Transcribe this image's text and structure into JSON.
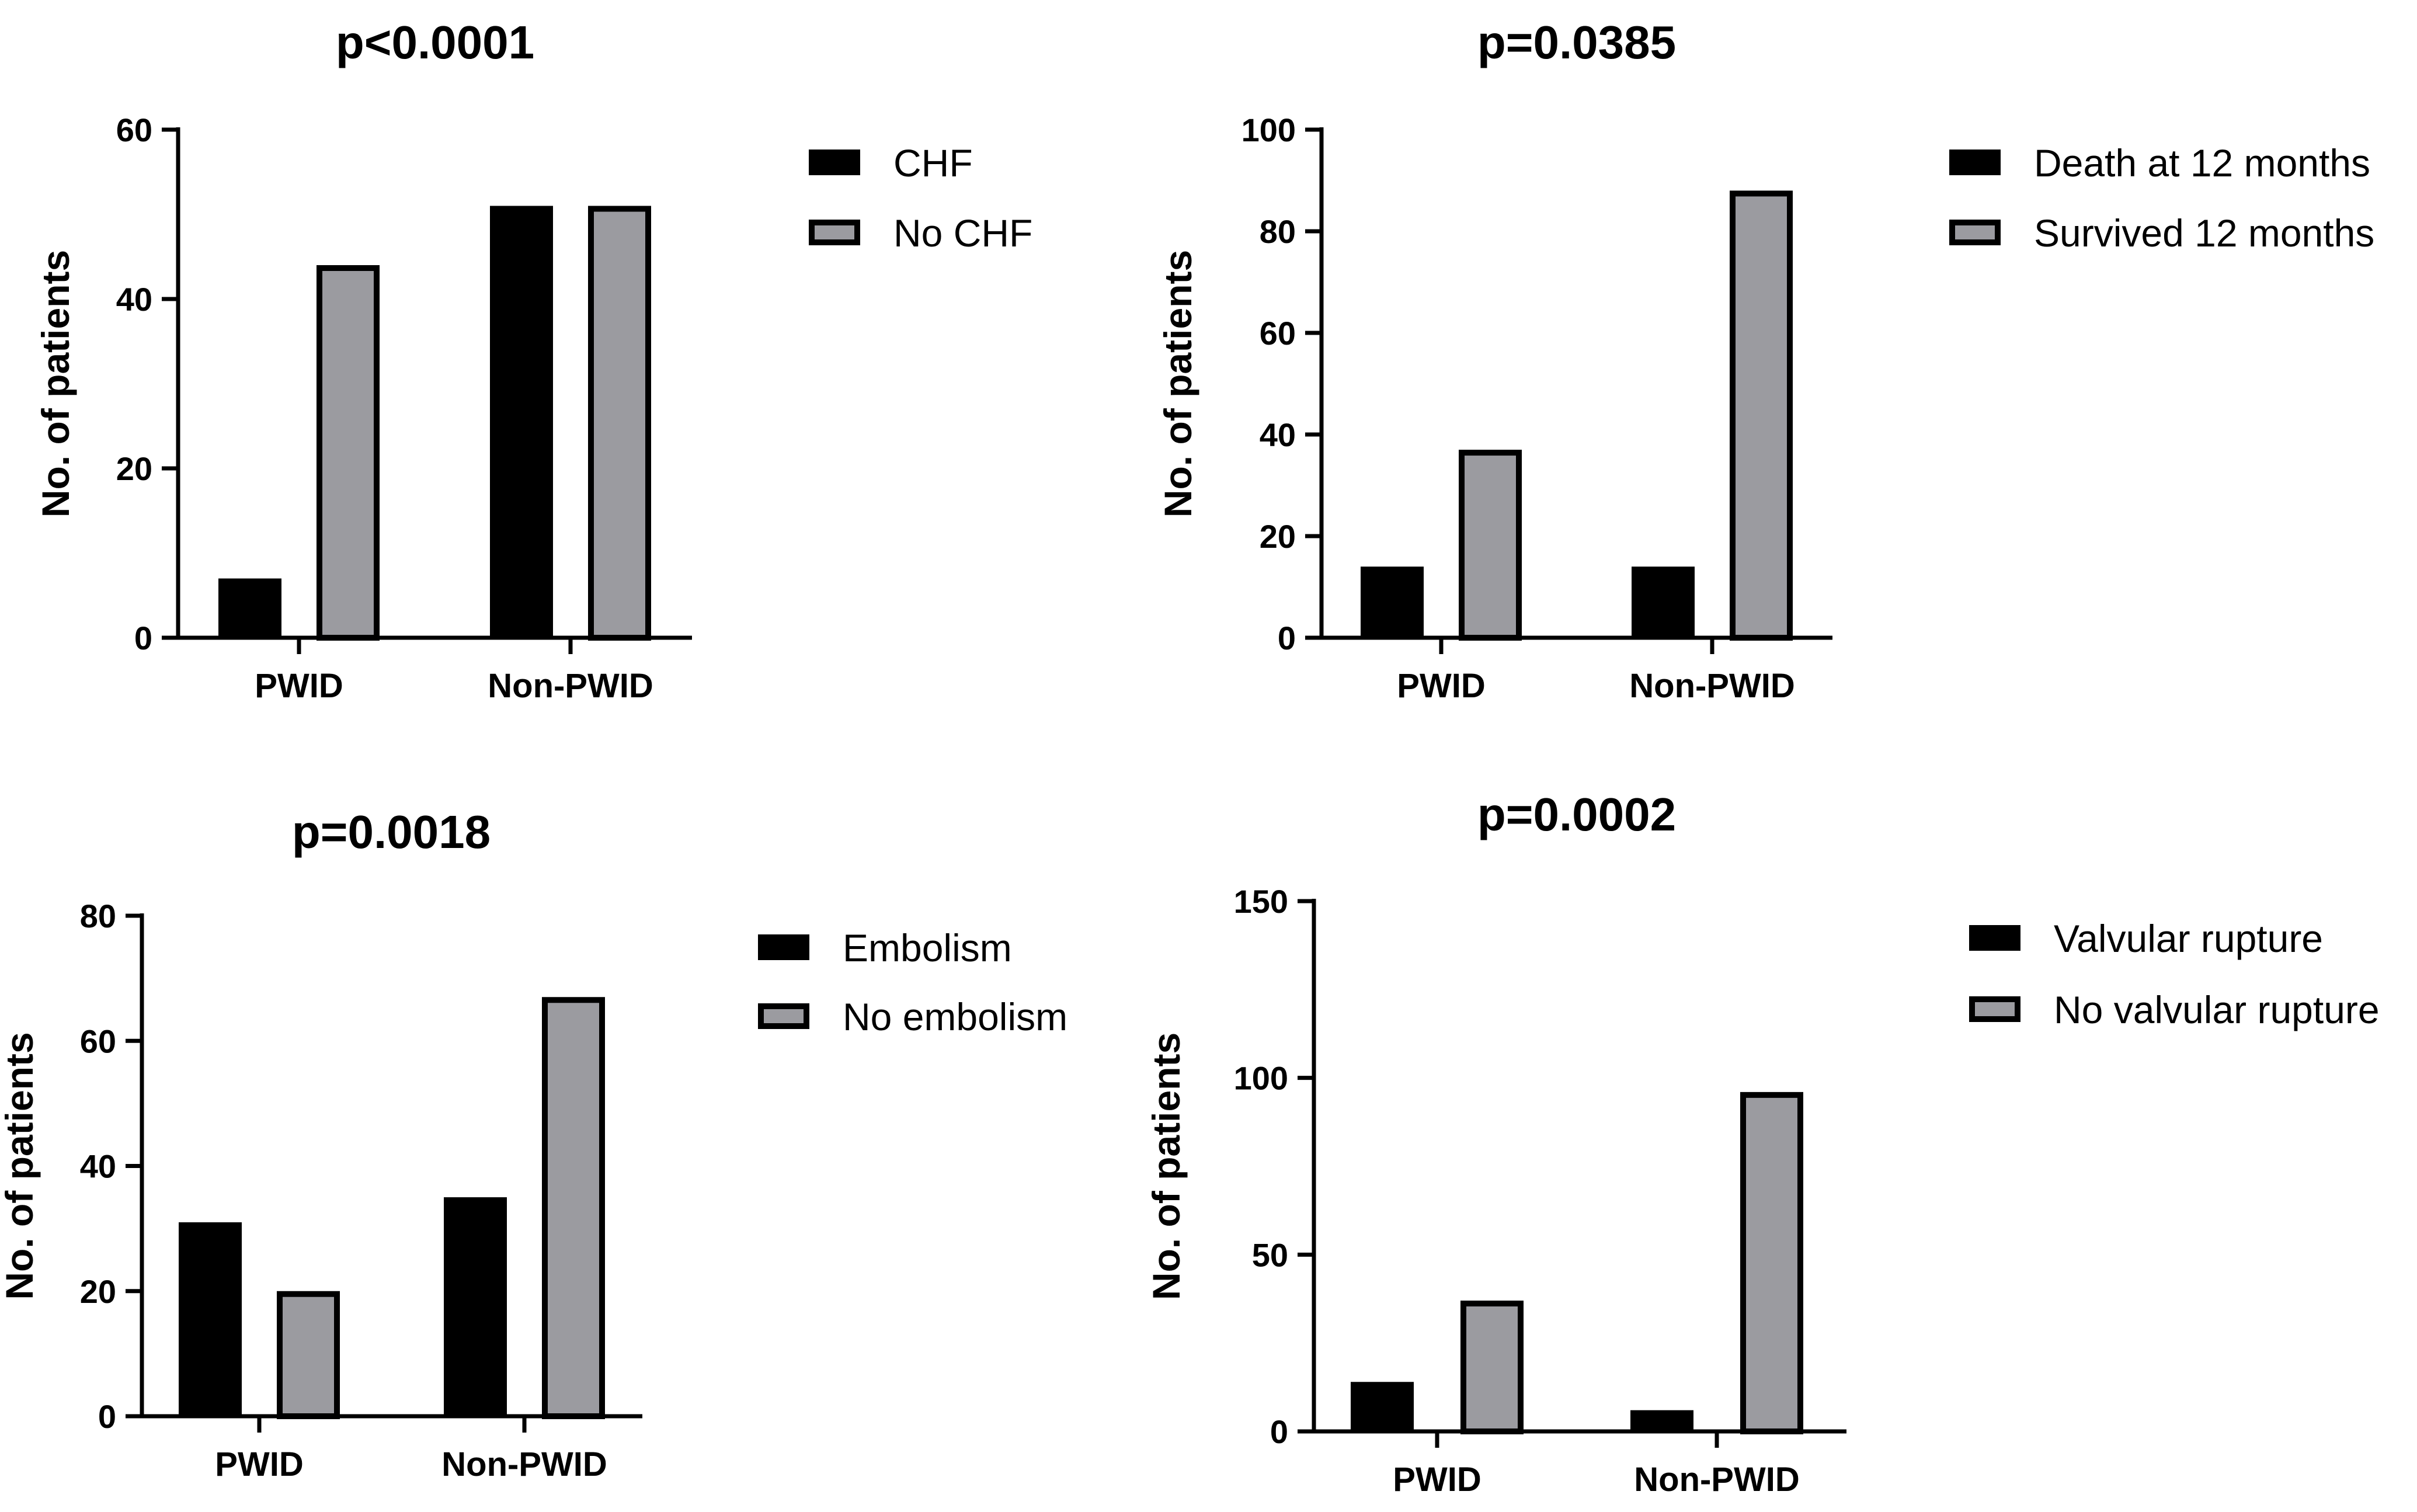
{
  "colors": {
    "series_a": "#000000",
    "series_b": "#9b9ba0",
    "outline": "#000000"
  },
  "chart_data": [
    {
      "type": "bar",
      "title": "p<0.0001",
      "ylabel": "No. of patients",
      "xlabel": "",
      "categories": [
        "PWID",
        "Non-PWID"
      ],
      "ylim": [
        0,
        60
      ],
      "yticks": [
        "0",
        "20",
        "40",
        "60"
      ],
      "series": [
        {
          "name": "CHF",
          "values": [
            7,
            51
          ]
        },
        {
          "name": "No CHF",
          "values": [
            44,
            51
          ]
        }
      ],
      "legend": "right"
    },
    {
      "type": "bar",
      "title": "p=0.0385",
      "ylabel": "No. of patients",
      "xlabel": "",
      "categories": [
        "PWID",
        "Non-PWID"
      ],
      "ylim": [
        0,
        100
      ],
      "yticks": [
        "0",
        "20",
        "40",
        "60",
        "80",
        "100"
      ],
      "series": [
        {
          "name": "Death at 12 months",
          "values": [
            14,
            14
          ]
        },
        {
          "name": "Survived 12 months",
          "values": [
            37,
            88
          ]
        }
      ],
      "legend": "right"
    },
    {
      "type": "bar",
      "title": "p=0.0018",
      "ylabel": "No. of patients",
      "xlabel": "",
      "categories": [
        "PWID",
        "Non-PWID"
      ],
      "ylim": [
        0,
        80
      ],
      "yticks": [
        "0",
        "20",
        "40",
        "60",
        "80"
      ],
      "series": [
        {
          "name": "Embolism",
          "values": [
            31,
            35
          ]
        },
        {
          "name": "No embolism",
          "values": [
            20,
            67
          ]
        }
      ],
      "legend": "right"
    },
    {
      "type": "bar",
      "title": "p=0.0002",
      "ylabel": "No. of patients",
      "xlabel": "",
      "categories": [
        "PWID",
        "Non-PWID"
      ],
      "ylim": [
        0,
        150
      ],
      "yticks": [
        "0",
        "50",
        "100",
        "150"
      ],
      "series": [
        {
          "name": "Valvular rupture",
          "values": [
            14,
            6
          ]
        },
        {
          "name": "No valvular rupture",
          "values": [
            37,
            96
          ]
        }
      ],
      "legend": "right"
    }
  ]
}
